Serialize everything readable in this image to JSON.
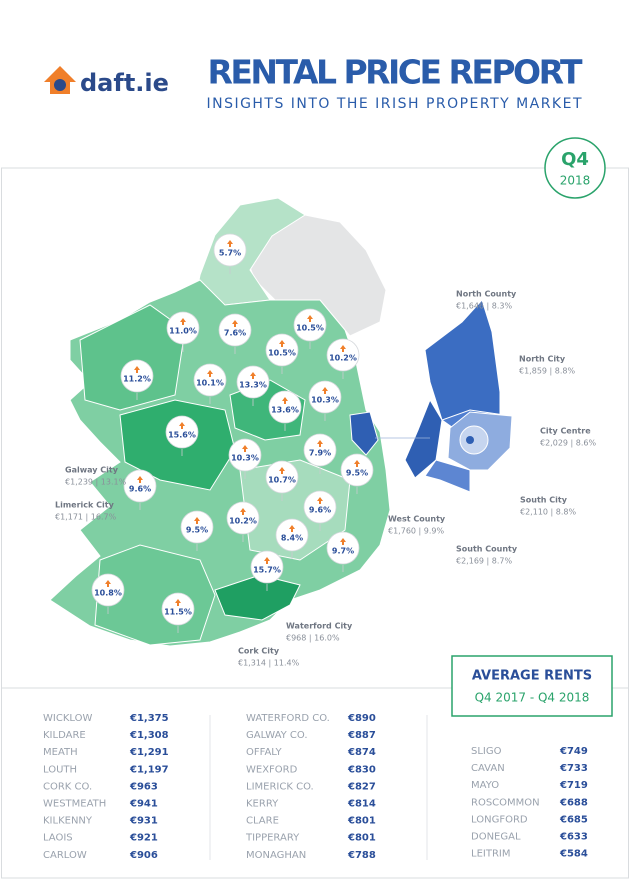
{
  "header": {
    "logo": "daft.ie",
    "title": "RENTAL PRICE REPORT",
    "subtitle": "INSIGHTS INTO THE IRISH PROPERTY MARKET"
  },
  "badge": {
    "quarter": "Q4",
    "year": "2018"
  },
  "map": {
    "regions": [
      "5.7%",
      "11.0%",
      "7.6%",
      "10.5%",
      "10.5%",
      "10.2%",
      "11.2%",
      "10.1%",
      "13.3%",
      "13.6%",
      "10.3%",
      "15.6%",
      "7.9%",
      "10.3%",
      "9.5%",
      "10.7%",
      "9.6%",
      "9.6%",
      "10.2%",
      "9.5%",
      "8.4%",
      "9.7%",
      "15.7%",
      "10.8%",
      "11.5%"
    ],
    "cities": [
      {
        "name": "Galway City",
        "detail": "€1,239 | 13.1%"
      },
      {
        "name": "Limerick City",
        "detail": "€1,171 | 16.7%"
      },
      {
        "name": "Waterford City",
        "detail": "€968 | 16.0%"
      },
      {
        "name": "Cork City",
        "detail": "€1,314 | 11.4%"
      }
    ],
    "dublin": [
      {
        "name": "North County",
        "detail": "€1,646 | 8.3%"
      },
      {
        "name": "North City",
        "detail": "€1,859 | 8.8%"
      },
      {
        "name": "City Centre",
        "detail": "€2,029 | 8.6%"
      },
      {
        "name": "South City",
        "detail": "€2,110 | 8.8%"
      },
      {
        "name": "West County",
        "detail": "€1,760 | 9.9%"
      },
      {
        "name": "South County",
        "detail": "€2,169 | 8.7%"
      }
    ]
  },
  "legend": {
    "title": "AVERAGE RENTS",
    "period": "Q4 2017 - Q4 2018"
  },
  "table": {
    "columns": [
      {
        "rows": [
          {
            "county": "WICKLOW",
            "rent": "€1,375"
          },
          {
            "county": "KILDARE",
            "rent": "€1,308"
          },
          {
            "county": "MEATH",
            "rent": "€1,291"
          },
          {
            "county": "LOUTH",
            "rent": "€1,197"
          },
          {
            "county": "CORK CO.",
            "rent": "€963"
          },
          {
            "county": "WESTMEATH",
            "rent": "€941"
          },
          {
            "county": "KILKENNY",
            "rent": "€931"
          },
          {
            "county": "LAOIS",
            "rent": "€921"
          },
          {
            "county": "CARLOW",
            "rent": "€906"
          }
        ]
      },
      {
        "rows": [
          {
            "county": "WATERFORD CO.",
            "rent": "€890"
          },
          {
            "county": "GALWAY CO.",
            "rent": "€887"
          },
          {
            "county": "OFFALY",
            "rent": "€874"
          },
          {
            "county": "WEXFORD",
            "rent": "€830"
          },
          {
            "county": "LIMERICK CO.",
            "rent": "€827"
          },
          {
            "county": "KERRY",
            "rent": "€814"
          },
          {
            "county": "CLARE",
            "rent": "€801"
          },
          {
            "county": "TIPPERARY",
            "rent": "€801"
          },
          {
            "county": "MONAGHAN",
            "rent": "€788"
          }
        ]
      },
      {
        "rows": [
          {
            "county": "SLIGO",
            "rent": "€749"
          },
          {
            "county": "CAVAN",
            "rent": "€733"
          },
          {
            "county": "MAYO",
            "rent": "€719"
          },
          {
            "county": "ROSCOMMON",
            "rent": "€688"
          },
          {
            "county": "LONGFORD",
            "rent": "€685"
          },
          {
            "county": "DONEGAL",
            "rent": "€633"
          },
          {
            "county": "LEITRIM",
            "rent": "€584"
          }
        ]
      }
    ]
  }
}
